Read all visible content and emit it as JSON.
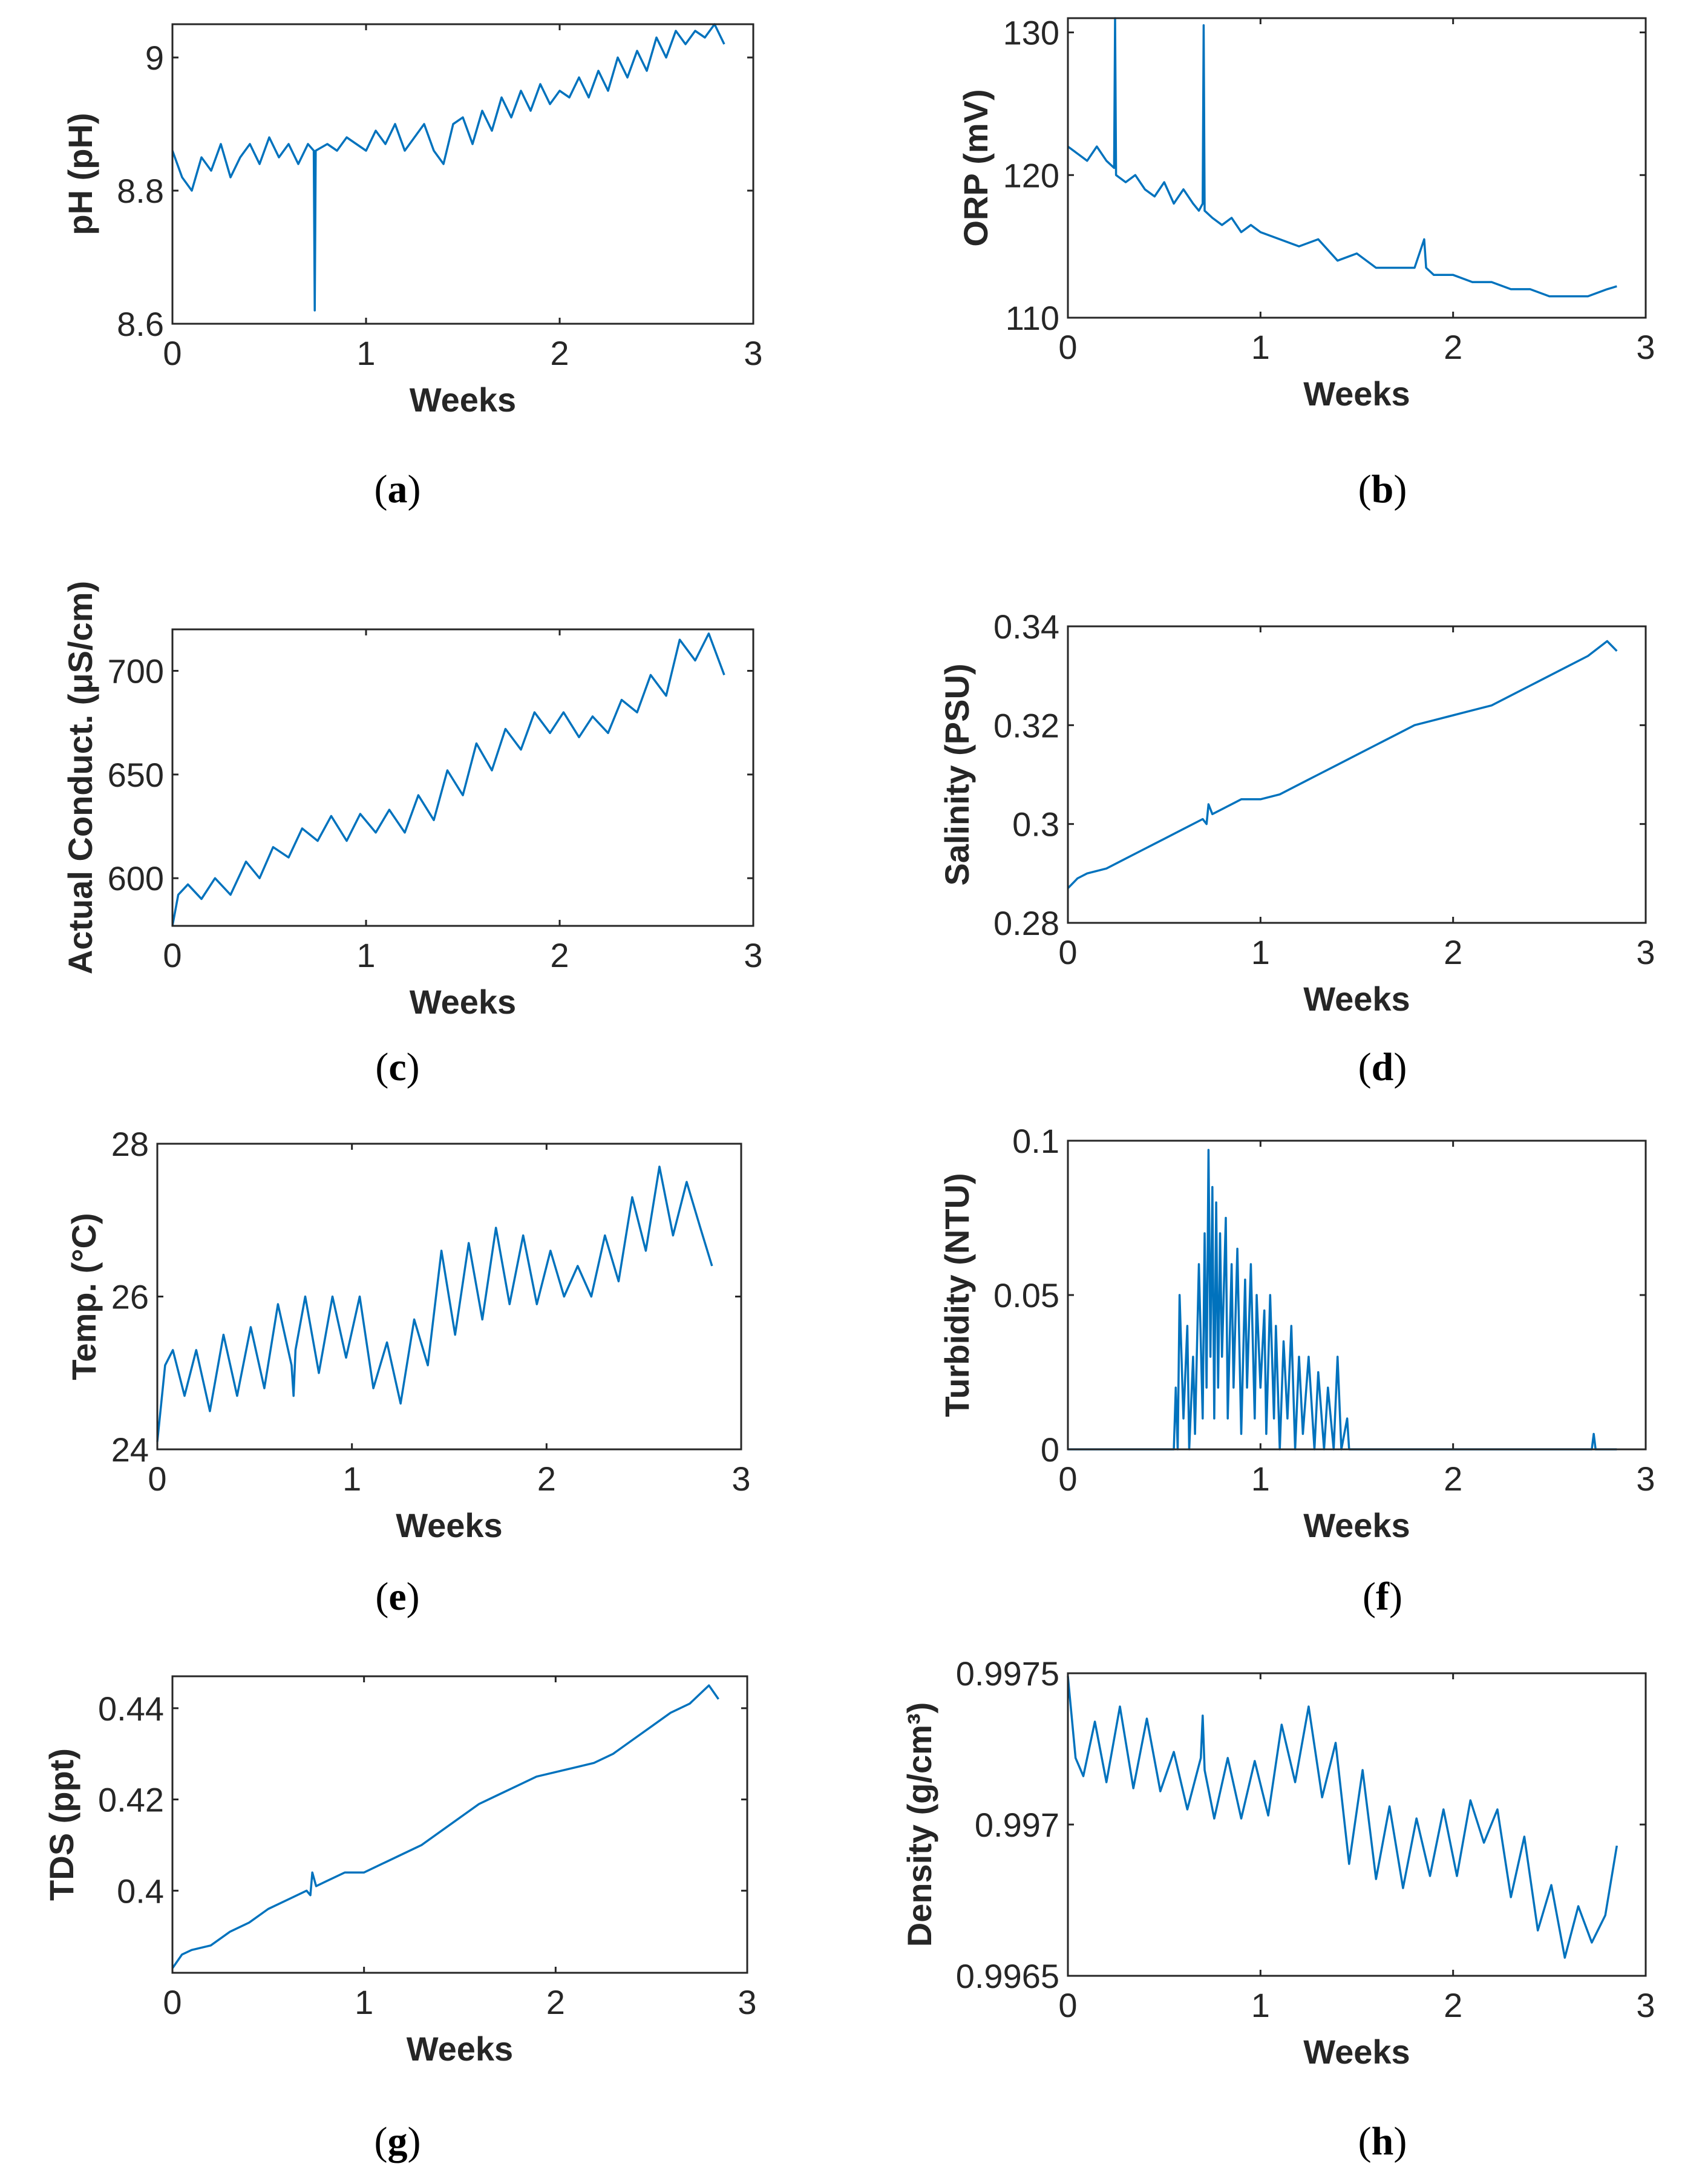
{
  "figure": {
    "series_color": "#0072BD",
    "axis_color": "#262626"
  },
  "chart_data": [
    {
      "id": "a",
      "type": "line",
      "panel_label": "a",
      "xlabel": "Weeks",
      "ylabel": "pH (pH)",
      "xlim": [
        0,
        3
      ],
      "ylim": [
        8.6,
        9.05
      ],
      "xticks": [
        0,
        1,
        2,
        3
      ],
      "xtick_labels": [
        "0",
        "1",
        "2",
        "3"
      ],
      "yticks": [
        8.6,
        8.8,
        9
      ],
      "ytick_labels": [
        "8.6",
        "8.8",
        "9"
      ],
      "x": [
        0,
        0.05,
        0.1,
        0.15,
        0.2,
        0.25,
        0.3,
        0.35,
        0.4,
        0.45,
        0.5,
        0.55,
        0.6,
        0.65,
        0.7,
        0.73,
        0.735,
        0.74,
        0.8,
        0.85,
        0.9,
        0.95,
        1.0,
        1.05,
        1.1,
        1.15,
        1.2,
        1.25,
        1.3,
        1.35,
        1.4,
        1.45,
        1.5,
        1.55,
        1.6,
        1.65,
        1.7,
        1.75,
        1.8,
        1.85,
        1.9,
        1.95,
        2.0,
        2.05,
        2.1,
        2.15,
        2.2,
        2.25,
        2.3,
        2.35,
        2.4,
        2.45,
        2.5,
        2.55,
        2.6,
        2.65,
        2.7,
        2.75,
        2.8,
        2.85
      ],
      "y": [
        8.86,
        8.82,
        8.8,
        8.85,
        8.83,
        8.87,
        8.82,
        8.85,
        8.87,
        8.84,
        8.88,
        8.85,
        8.87,
        8.84,
        8.87,
        8.86,
        8.62,
        8.86,
        8.87,
        8.86,
        8.88,
        8.87,
        8.86,
        8.89,
        8.87,
        8.9,
        8.86,
        8.88,
        8.9,
        8.86,
        8.84,
        8.9,
        8.91,
        8.87,
        8.92,
        8.89,
        8.94,
        8.91,
        8.95,
        8.92,
        8.96,
        8.93,
        8.95,
        8.94,
        8.97,
        8.94,
        8.98,
        8.95,
        9.0,
        8.97,
        9.01,
        8.98,
        9.03,
        9.0,
        9.04,
        9.02,
        9.04,
        9.03,
        9.05,
        9.02
      ]
    },
    {
      "id": "b",
      "type": "line",
      "panel_label": "b",
      "xlabel": "Weeks",
      "ylabel": "ORP (mV)",
      "xlim": [
        0,
        3
      ],
      "ylim": [
        110,
        131
      ],
      "xticks": [
        0,
        1,
        2,
        3
      ],
      "xtick_labels": [
        "0",
        "1",
        "2",
        "3"
      ],
      "yticks": [
        110,
        120,
        130
      ],
      "ytick_labels": [
        "110",
        "120",
        "130"
      ],
      "x": [
        0,
        0.05,
        0.1,
        0.15,
        0.2,
        0.24,
        0.245,
        0.25,
        0.3,
        0.35,
        0.4,
        0.45,
        0.5,
        0.55,
        0.6,
        0.65,
        0.68,
        0.7,
        0.705,
        0.71,
        0.75,
        0.8,
        0.85,
        0.9,
        0.95,
        1.0,
        1.1,
        1.2,
        1.3,
        1.4,
        1.5,
        1.6,
        1.7,
        1.8,
        1.85,
        1.86,
        1.9,
        2.0,
        2.1,
        2.2,
        2.3,
        2.4,
        2.5,
        2.6,
        2.7,
        2.8,
        2.85
      ],
      "y": [
        122,
        121.5,
        121,
        122,
        121,
        120.5,
        131,
        120,
        119.5,
        120,
        119,
        118.5,
        119.5,
        118,
        119,
        118,
        117.5,
        118,
        130.5,
        117.5,
        117,
        116.5,
        117,
        116,
        116.5,
        116,
        115.5,
        115,
        115.5,
        114,
        114.5,
        113.5,
        113.5,
        113.5,
        115.5,
        113.5,
        113,
        113,
        112.5,
        112.5,
        112,
        112,
        111.5,
        111.5,
        111.5,
        112,
        112.2
      ]
    },
    {
      "id": "c",
      "type": "line",
      "panel_label": "c",
      "xlabel": "Weeks",
      "ylabel": "Actual Conduct. (μS/cm)",
      "xlim": [
        0,
        3
      ],
      "ylim": [
        577,
        720
      ],
      "xticks": [
        0,
        1,
        2,
        3
      ],
      "xtick_labels": [
        "0",
        "1",
        "2",
        "3"
      ],
      "yticks": [
        600,
        650,
        700
      ],
      "ytick_labels": [
        "600",
        "650",
        "700"
      ],
      "x": [
        0,
        0.03,
        0.08,
        0.15,
        0.22,
        0.3,
        0.38,
        0.45,
        0.52,
        0.6,
        0.67,
        0.75,
        0.82,
        0.9,
        0.97,
        1.05,
        1.12,
        1.2,
        1.27,
        1.35,
        1.42,
        1.5,
        1.57,
        1.65,
        1.72,
        1.8,
        1.87,
        1.95,
        2.02,
        2.1,
        2.17,
        2.25,
        2.32,
        2.4,
        2.47,
        2.55,
        2.62,
        2.7,
        2.77,
        2.85
      ],
      "y": [
        577,
        592,
        597,
        590,
        600,
        592,
        608,
        600,
        615,
        610,
        624,
        618,
        630,
        618,
        631,
        622,
        633,
        622,
        640,
        628,
        652,
        640,
        665,
        652,
        672,
        662,
        680,
        670,
        680,
        668,
        678,
        670,
        686,
        680,
        698,
        688,
        715,
        705,
        718,
        698
      ]
    },
    {
      "id": "d",
      "type": "line",
      "panel_label": "d",
      "xlabel": "Weeks",
      "ylabel": "Salinity (PSU)",
      "xlim": [
        0,
        3
      ],
      "ylim": [
        0.28,
        0.34
      ],
      "xticks": [
        0,
        1,
        2,
        3
      ],
      "xtick_labels": [
        "0",
        "1",
        "2",
        "3"
      ],
      "yticks": [
        0.28,
        0.3,
        0.32,
        0.34
      ],
      "ytick_labels": [
        "0.28",
        "0.3",
        "0.32",
        "0.34"
      ],
      "x": [
        0,
        0.05,
        0.1,
        0.2,
        0.3,
        0.4,
        0.5,
        0.6,
        0.7,
        0.72,
        0.73,
        0.75,
        0.8,
        0.9,
        1.0,
        1.1,
        1.2,
        1.3,
        1.4,
        1.5,
        1.6,
        1.7,
        1.8,
        1.9,
        2.0,
        2.1,
        2.2,
        2.3,
        2.4,
        2.5,
        2.6,
        2.7,
        2.8,
        2.85
      ],
      "y": [
        0.287,
        0.289,
        0.29,
        0.291,
        0.293,
        0.295,
        0.297,
        0.299,
        0.301,
        0.3,
        0.304,
        0.302,
        0.303,
        0.305,
        0.305,
        0.306,
        0.308,
        0.31,
        0.312,
        0.314,
        0.316,
        0.318,
        0.32,
        0.321,
        0.322,
        0.323,
        0.324,
        0.326,
        0.328,
        0.33,
        0.332,
        0.334,
        0.337,
        0.335
      ]
    },
    {
      "id": "e",
      "type": "line",
      "panel_label": "e",
      "xlabel": "Weeks",
      "ylabel": "Temp. (°C)",
      "xlim": [
        0,
        3
      ],
      "ylim": [
        24,
        28
      ],
      "xticks": [
        0,
        1,
        2,
        3
      ],
      "xtick_labels": [
        "0",
        "1",
        "2",
        "3"
      ],
      "yticks": [
        24,
        26,
        28
      ],
      "ytick_labels": [
        "24",
        "26",
        "28"
      ],
      "x": [
        0,
        0.04,
        0.08,
        0.14,
        0.2,
        0.27,
        0.34,
        0.41,
        0.48,
        0.55,
        0.62,
        0.69,
        0.7,
        0.71,
        0.76,
        0.83,
        0.9,
        0.97,
        1.04,
        1.11,
        1.18,
        1.25,
        1.32,
        1.39,
        1.46,
        1.53,
        1.6,
        1.67,
        1.74,
        1.81,
        1.88,
        1.95,
        2.02,
        2.09,
        2.16,
        2.23,
        2.3,
        2.37,
        2.44,
        2.51,
        2.58,
        2.65,
        2.72,
        2.79,
        2.85
      ],
      "y": [
        24.1,
        25.1,
        25.3,
        24.7,
        25.3,
        24.5,
        25.5,
        24.7,
        25.6,
        24.8,
        25.9,
        25.1,
        24.7,
        25.3,
        26.0,
        25.0,
        26.0,
        25.2,
        26.0,
        24.8,
        25.4,
        24.6,
        25.7,
        25.1,
        26.6,
        25.5,
        26.7,
        25.7,
        26.9,
        25.9,
        26.8,
        25.9,
        26.6,
        26.0,
        26.4,
        26.0,
        26.8,
        26.2,
        27.3,
        26.6,
        27.7,
        26.8,
        27.5,
        26.9,
        26.4
      ]
    },
    {
      "id": "f",
      "type": "line",
      "panel_label": "f",
      "xlabel": "Weeks",
      "ylabel": "Turbidity (NTU)",
      "xlim": [
        0,
        3
      ],
      "ylim": [
        0,
        0.1
      ],
      "xticks": [
        0,
        1,
        2,
        3
      ],
      "xtick_labels": [
        "0",
        "1",
        "2",
        "3"
      ],
      "yticks": [
        0,
        0.05,
        0.1
      ],
      "ytick_labels": [
        "0",
        "0.05",
        "0.1"
      ],
      "x": [
        0,
        0.55,
        0.56,
        0.57,
        0.58,
        0.6,
        0.62,
        0.63,
        0.65,
        0.66,
        0.68,
        0.7,
        0.71,
        0.72,
        0.73,
        0.74,
        0.75,
        0.76,
        0.77,
        0.78,
        0.79,
        0.8,
        0.82,
        0.83,
        0.85,
        0.86,
        0.88,
        0.9,
        0.92,
        0.93,
        0.95,
        0.97,
        0.98,
        1.0,
        1.02,
        1.03,
        1.05,
        1.07,
        1.08,
        1.1,
        1.12,
        1.14,
        1.16,
        1.18,
        1.2,
        1.22,
        1.25,
        1.28,
        1.3,
        1.33,
        1.35,
        1.38,
        1.4,
        1.42,
        1.45,
        1.46,
        2.72,
        2.73,
        2.74,
        2.85
      ],
      "y": [
        0,
        0,
        0.02,
        0,
        0.05,
        0.01,
        0.04,
        0,
        0.03,
        0.005,
        0.06,
        0.01,
        0.07,
        0.02,
        0.097,
        0.03,
        0.085,
        0.01,
        0.08,
        0.02,
        0.07,
        0.03,
        0.075,
        0.01,
        0.06,
        0.02,
        0.065,
        0.005,
        0.055,
        0.02,
        0.06,
        0.01,
        0.05,
        0.02,
        0.045,
        0.005,
        0.05,
        0.01,
        0.04,
        0,
        0.035,
        0.01,
        0.04,
        0,
        0.03,
        0.005,
        0.03,
        0,
        0.025,
        0,
        0.02,
        0,
        0.03,
        0,
        0.01,
        0,
        0,
        0.005,
        0,
        0
      ]
    },
    {
      "id": "g",
      "type": "line",
      "panel_label": "g",
      "xlabel": "Weeks",
      "ylabel": "TDS (ppt)",
      "xlim": [
        0,
        3
      ],
      "ylim": [
        0.382,
        0.447
      ],
      "xticks": [
        0,
        1,
        2,
        3
      ],
      "xtick_labels": [
        "0",
        "1",
        "2",
        "3"
      ],
      "yticks": [
        0.4,
        0.42,
        0.44
      ],
      "ytick_labels": [
        "0.4",
        "0.42",
        "0.44"
      ],
      "x": [
        0,
        0.05,
        0.1,
        0.2,
        0.3,
        0.4,
        0.5,
        0.6,
        0.7,
        0.72,
        0.73,
        0.75,
        0.8,
        0.9,
        1.0,
        1.1,
        1.2,
        1.3,
        1.4,
        1.5,
        1.6,
        1.7,
        1.8,
        1.9,
        2.0,
        2.1,
        2.2,
        2.3,
        2.4,
        2.5,
        2.6,
        2.7,
        2.8,
        2.85
      ],
      "y": [
        0.383,
        0.386,
        0.387,
        0.388,
        0.391,
        0.393,
        0.396,
        0.398,
        0.4,
        0.399,
        0.404,
        0.401,
        0.402,
        0.404,
        0.404,
        0.406,
        0.408,
        0.41,
        0.413,
        0.416,
        0.419,
        0.421,
        0.423,
        0.425,
        0.426,
        0.427,
        0.428,
        0.43,
        0.433,
        0.436,
        0.439,
        0.441,
        0.445,
        0.442
      ]
    },
    {
      "id": "h",
      "type": "line",
      "panel_label": "h",
      "xlabel": "Weeks",
      "ylabel": "Density (g/cm³)",
      "xlim": [
        0,
        3
      ],
      "ylim": [
        0.9965,
        0.9975
      ],
      "xticks": [
        0,
        1,
        2,
        3
      ],
      "xtick_labels": [
        "0",
        "1",
        "2",
        "3"
      ],
      "yticks": [
        0.9965,
        0.997,
        0.9975
      ],
      "ytick_labels": [
        "0.9965",
        "0.997",
        "0.9975"
      ],
      "x": [
        0,
        0.04,
        0.08,
        0.14,
        0.2,
        0.27,
        0.34,
        0.41,
        0.48,
        0.55,
        0.62,
        0.69,
        0.7,
        0.71,
        0.76,
        0.83,
        0.9,
        0.97,
        1.04,
        1.11,
        1.18,
        1.25,
        1.32,
        1.39,
        1.46,
        1.53,
        1.6,
        1.67,
        1.74,
        1.81,
        1.88,
        1.95,
        2.02,
        2.09,
        2.16,
        2.23,
        2.3,
        2.37,
        2.44,
        2.51,
        2.58,
        2.65,
        2.72,
        2.79,
        2.85
      ],
      "y": [
        0.99749,
        0.99722,
        0.99716,
        0.99734,
        0.99714,
        0.99739,
        0.99712,
        0.99735,
        0.99711,
        0.99724,
        0.99705,
        0.99722,
        0.99736,
        0.99718,
        0.99702,
        0.99722,
        0.99702,
        0.99721,
        0.99703,
        0.99733,
        0.99714,
        0.99739,
        0.99709,
        0.99727,
        0.99687,
        0.99718,
        0.99682,
        0.99706,
        0.99679,
        0.99702,
        0.99683,
        0.99705,
        0.99683,
        0.99708,
        0.99694,
        0.99705,
        0.99676,
        0.99696,
        0.99665,
        0.9968,
        0.99656,
        0.99673,
        0.99661,
        0.9967,
        0.99693
      ]
    }
  ]
}
